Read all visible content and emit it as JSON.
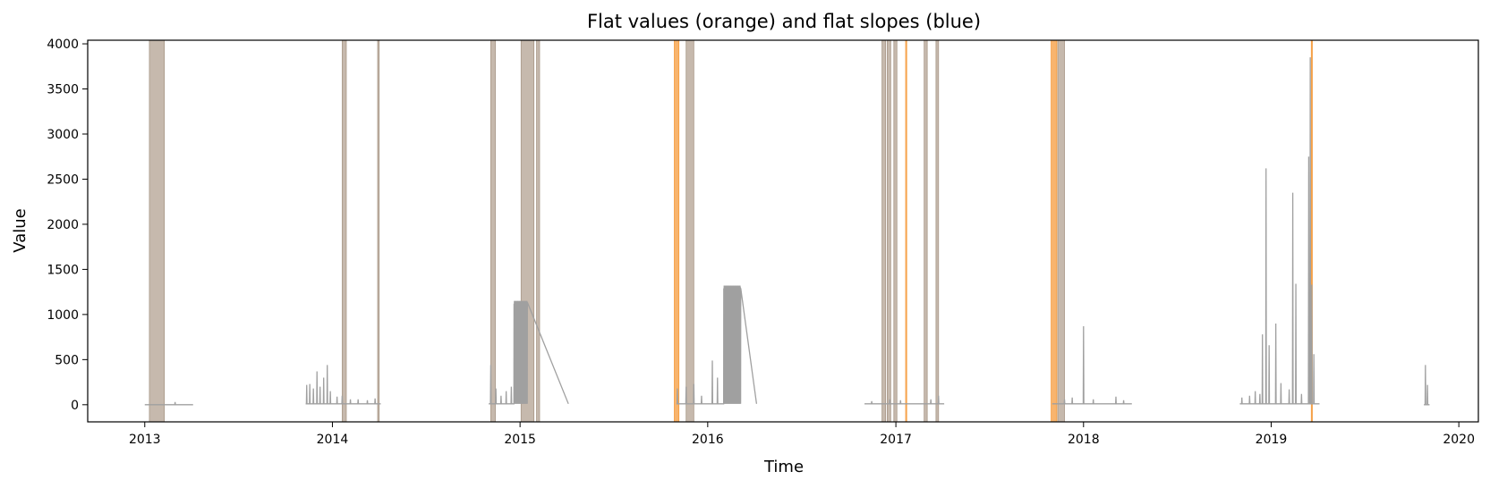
{
  "chart_data": {
    "type": "line",
    "title": "Flat values (orange) and flat slopes (blue)",
    "xlabel": "Time",
    "ylabel": "Value",
    "xlim": [
      "2012-09-12",
      "2020-02-08"
    ],
    "ylim": [
      -190,
      4040
    ],
    "xticks": [
      "2013",
      "2014",
      "2015",
      "2016",
      "2017",
      "2018",
      "2019",
      "2020"
    ],
    "yticks": [
      0,
      500,
      1000,
      1500,
      2000,
      2500,
      3000,
      3500,
      4000
    ],
    "grid": false,
    "colors": {
      "series": "#a0a0a0",
      "flat_values": "#f59b3c",
      "flat_slopes": "#5b7fb8",
      "overlap": "#b8a898"
    },
    "series": [
      {
        "segments": [
          {
            "start": "2013-01-01",
            "end": "2013-04-05",
            "base": 0,
            "spikes": [
              [
                "2013-03-01",
                30
              ]
            ]
          },
          {
            "start": "2013-11-10",
            "end": "2014-04-05",
            "base": 10,
            "spikes": [
              [
                "2013-11-12",
                220
              ],
              [
                "2013-11-18",
                230
              ],
              [
                "2013-11-25",
                180
              ],
              [
                "2013-12-02",
                370
              ],
              [
                "2013-12-08",
                200
              ],
              [
                "2013-12-15",
                300
              ],
              [
                "2013-12-22",
                440
              ],
              [
                "2013-12-28",
                150
              ],
              [
                "2014-01-10",
                90
              ],
              [
                "2014-01-20",
                100
              ],
              [
                "2014-02-05",
                60
              ],
              [
                "2014-02-20",
                60
              ],
              [
                "2014-03-10",
                50
              ],
              [
                "2014-03-25",
                70
              ]
            ]
          },
          {
            "start": "2014-11-01",
            "end": "2015-04-05",
            "base": 10,
            "spikes": [
              [
                "2014-11-05",
                440
              ],
              [
                "2014-11-15",
                180
              ],
              [
                "2014-11-25",
                100
              ],
              [
                "2014-12-05",
                150
              ],
              [
                "2014-12-15",
                200
              ]
            ],
            "block": [
              "2014-12-20",
              "2015-01-15",
              1150
            ]
          },
          {
            "start": "2015-11-01",
            "end": "2016-04-05",
            "base": 10,
            "spikes": [
              [
                "2015-11-03",
                180
              ],
              [
                "2015-11-20",
                200
              ],
              [
                "2015-12-05",
                230
              ],
              [
                "2015-12-20",
                100
              ],
              [
                "2016-01-10",
                490
              ],
              [
                "2016-01-20",
                300
              ]
            ],
            "block": [
              "2016-02-01",
              "2016-03-05",
              1320
            ]
          },
          {
            "start": "2016-11-01",
            "end": "2017-04-05",
            "base": 10,
            "spikes": [
              [
                "2016-11-15",
                40
              ],
              [
                "2016-12-20",
                60
              ],
              [
                "2017-01-10",
                50
              ],
              [
                "2017-03-10",
                60
              ],
              [
                "2017-03-25",
                100
              ]
            ]
          },
          {
            "start": "2017-11-01",
            "end": "2018-04-05",
            "base": 10,
            "spikes": [
              [
                "2017-11-25",
                60
              ],
              [
                "2017-12-10",
                80
              ],
              [
                "2018-01-01",
                870
              ],
              [
                "2018-01-20",
                60
              ],
              [
                "2018-03-05",
                90
              ],
              [
                "2018-03-20",
                50
              ]
            ]
          },
          {
            "start": "2018-11-01",
            "end": "2019-04-05",
            "base": 10,
            "spikes": [
              [
                "2018-11-05",
                80
              ],
              [
                "2018-11-20",
                100
              ],
              [
                "2018-12-01",
                150
              ],
              [
                "2018-12-10",
                120
              ],
              [
                "2018-12-15",
                780
              ],
              [
                "2018-12-22",
                2620
              ],
              [
                "2018-12-28",
                660
              ],
              [
                "2019-01-10",
                900
              ],
              [
                "2019-01-20",
                240
              ],
              [
                "2019-02-05",
                170
              ],
              [
                "2019-02-12",
                2350
              ],
              [
                "2019-02-18",
                1340
              ],
              [
                "2019-03-01",
                120
              ],
              [
                "2019-03-15",
                2750
              ],
              [
                "2019-03-18",
                3850
              ],
              [
                "2019-03-21",
                1330
              ],
              [
                "2019-03-25",
                560
              ]
            ]
          },
          {
            "start": "2019-10-25",
            "end": "2019-11-05",
            "base": 0,
            "spikes": [
              [
                "2019-10-28",
                440
              ],
              [
                "2019-11-01",
                220
              ]
            ]
          }
        ]
      }
    ],
    "flat_regions": [
      {
        "kind": "both",
        "start": "2013-01-10",
        "end": "2013-02-08"
      },
      {
        "kind": "both",
        "start": "2014-01-20",
        "end": "2014-01-28"
      },
      {
        "kind": "both",
        "start": "2014-03-30",
        "end": "2014-04-02"
      },
      {
        "kind": "both",
        "start": "2014-11-05",
        "end": "2014-11-14"
      },
      {
        "kind": "both",
        "start": "2015-01-03",
        "end": "2015-01-28"
      },
      {
        "kind": "both",
        "start": "2015-02-02",
        "end": "2015-02-08"
      },
      {
        "kind": "values",
        "start": "2015-10-28",
        "end": "2015-11-06"
      },
      {
        "kind": "both",
        "start": "2015-11-20",
        "end": "2015-12-05"
      },
      {
        "kind": "both",
        "start": "2016-12-05",
        "end": "2016-12-12"
      },
      {
        "kind": "both",
        "start": "2016-12-15",
        "end": "2016-12-22"
      },
      {
        "kind": "both",
        "start": "2016-12-28",
        "end": "2017-01-03"
      },
      {
        "kind": "values",
        "start": "2017-01-20",
        "end": "2017-01-22"
      },
      {
        "kind": "both",
        "start": "2017-02-25",
        "end": "2017-03-03"
      },
      {
        "kind": "both",
        "start": "2017-03-20",
        "end": "2017-03-25"
      },
      {
        "kind": "values",
        "start": "2017-10-30",
        "end": "2017-11-10"
      },
      {
        "kind": "both",
        "start": "2017-11-12",
        "end": "2017-11-25"
      },
      {
        "kind": "values",
        "start": "2019-03-20",
        "end": "2019-03-22"
      }
    ]
  }
}
